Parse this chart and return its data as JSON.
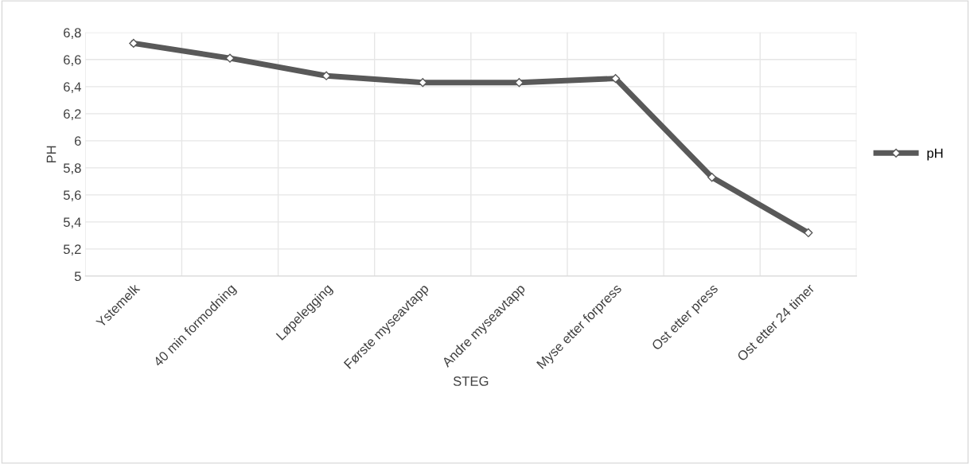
{
  "chart_data": {
    "type": "line",
    "xlabel": "STEG",
    "ylabel": "PH",
    "categories": [
      "Ystemelk",
      "40 min formodning",
      "Løpelegging",
      "Første myseavtapp",
      "Andre myseavtapp",
      "Myse etter forpress",
      "Ost etter press",
      "Ost etter 24 timer"
    ],
    "series": [
      {
        "name": "pH",
        "color": "#595959",
        "values": [
          6.72,
          6.61,
          6.48,
          6.43,
          6.43,
          6.46,
          5.73,
          5.32
        ]
      }
    ],
    "ylim": [
      5,
      6.8
    ],
    "yticks": [
      5,
      {
        "value": 5.2,
        "label": "5,2"
      },
      {
        "value": 5.4,
        "label": "5,4"
      },
      {
        "value": 5.6,
        "label": "5,6"
      },
      {
        "value": 5.8,
        "label": "5,8"
      },
      6,
      {
        "value": 6.2,
        "label": "6,2"
      },
      {
        "value": 6.4,
        "label": "6,4"
      },
      {
        "value": 6.6,
        "label": "6,6"
      },
      {
        "value": 6.8,
        "label": "6,8"
      }
    ],
    "grid": true,
    "legend": "right",
    "marker": "diamond",
    "line_style": "solid"
  }
}
